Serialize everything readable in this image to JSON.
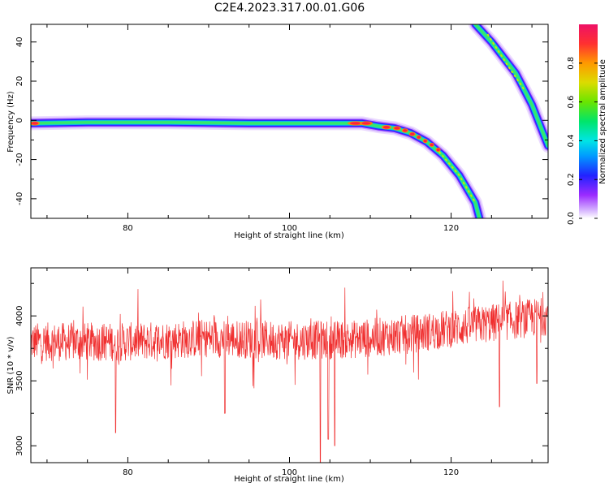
{
  "title": "C2E4.2023.317.00.01.G06",
  "chart_data": [
    {
      "type": "heatmap",
      "xlabel": "Height of straight line (km)",
      "ylabel": "Frequency (Hz)",
      "xlim": [
        68,
        132
      ],
      "ylim": [
        -50,
        49
      ],
      "xticks": [
        80,
        100,
        120
      ],
      "yticks": [
        -40,
        -20,
        0,
        20,
        40
      ],
      "colorbar": {
        "label": "Normalized spectral amplitude",
        "range": [
          0,
          1
        ],
        "ticks": [
          "0.0",
          "0.2",
          "0.4",
          "0.6",
          "0.8"
        ]
      },
      "tracks": [
        {
          "name": "",
          "points": [
            [
              68,
              -1.5
            ],
            [
              75,
              -1
            ],
            [
              85,
              -1
            ],
            [
              95,
              -1.5
            ],
            [
              105,
              -1.5
            ],
            [
              109,
              -1.5
            ],
            [
              111,
              -3
            ],
            [
              113,
              -4
            ],
            [
              115,
              -6.5
            ],
            [
              117,
              -11
            ],
            [
              119,
              -18
            ],
            [
              121,
              -28
            ],
            [
              123,
              -42
            ],
            [
              123.5,
              -50
            ]
          ]
        },
        {
          "name": "",
          "points": [
            [
              123,
              49
            ],
            [
              125,
              40
            ],
            [
              128,
              24
            ],
            [
              130,
              8
            ],
            [
              132,
              -13
            ]
          ]
        }
      ]
    },
    {
      "type": "line",
      "xlabel": "Height of straight line (km)",
      "ylabel": "SNR (10 * v/v)",
      "xlim": [
        68,
        132
      ],
      "ylim": [
        2870,
        4370
      ],
      "xticks": [
        80,
        100,
        120
      ],
      "yticks": [
        3000,
        3500,
        4000
      ],
      "series": [
        {
          "name": "",
          "color": "#f03030",
          "baseline": [
            [
              68,
              3800
            ],
            [
              80,
              3800
            ],
            [
              90,
              3830
            ],
            [
              100,
              3810
            ],
            [
              108,
              3820
            ],
            [
              115,
              3860
            ],
            [
              122,
              3920
            ],
            [
              132,
              4000
            ]
          ],
          "noise_range": 150,
          "dips": [
            [
              78.5,
              3100
            ],
            [
              92,
              3250
            ],
            [
              103.8,
              2870
            ],
            [
              104.8,
              3050
            ],
            [
              105.6,
              3000
            ],
            [
              126,
              3300
            ],
            [
              130.6,
              3480
            ]
          ]
        }
      ]
    }
  ]
}
